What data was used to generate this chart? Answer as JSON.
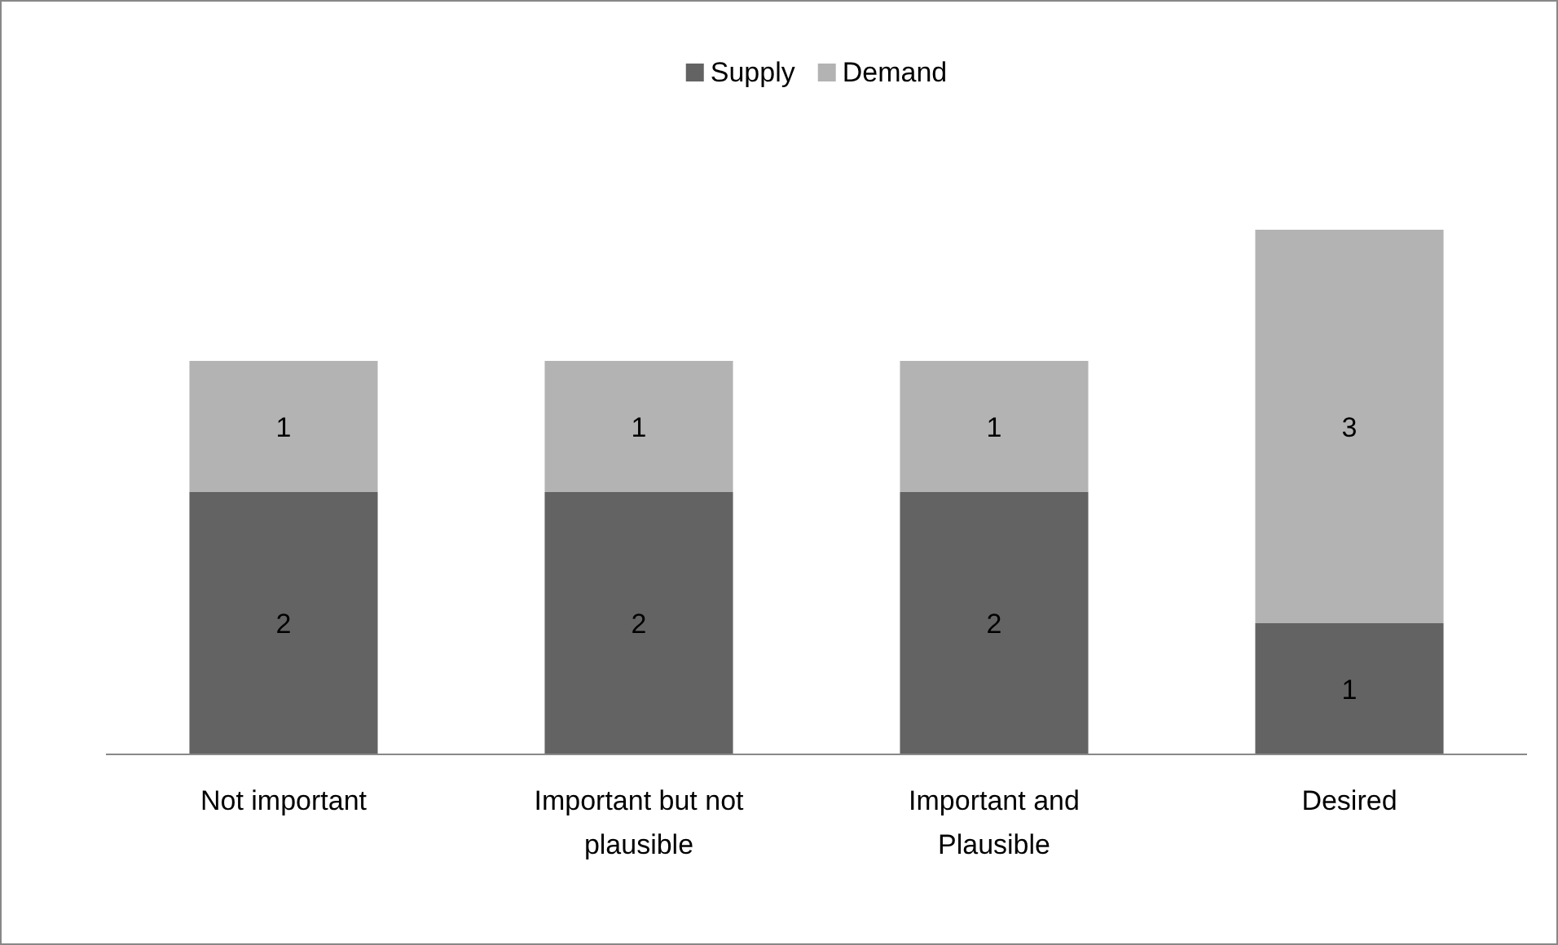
{
  "chart_data": {
    "type": "bar",
    "stacked": true,
    "data_labels": true,
    "legend": "top",
    "categories": [
      "Not important",
      "Important but not plausible",
      "Important and Plausible",
      "Desired"
    ],
    "series": [
      {
        "name": "Supply",
        "color": "#636363",
        "values": [
          2,
          2,
          2,
          1
        ]
      },
      {
        "name": "Demand",
        "color": "#b3b3b3",
        "values": [
          1,
          1,
          1,
          3
        ]
      }
    ]
  }
}
